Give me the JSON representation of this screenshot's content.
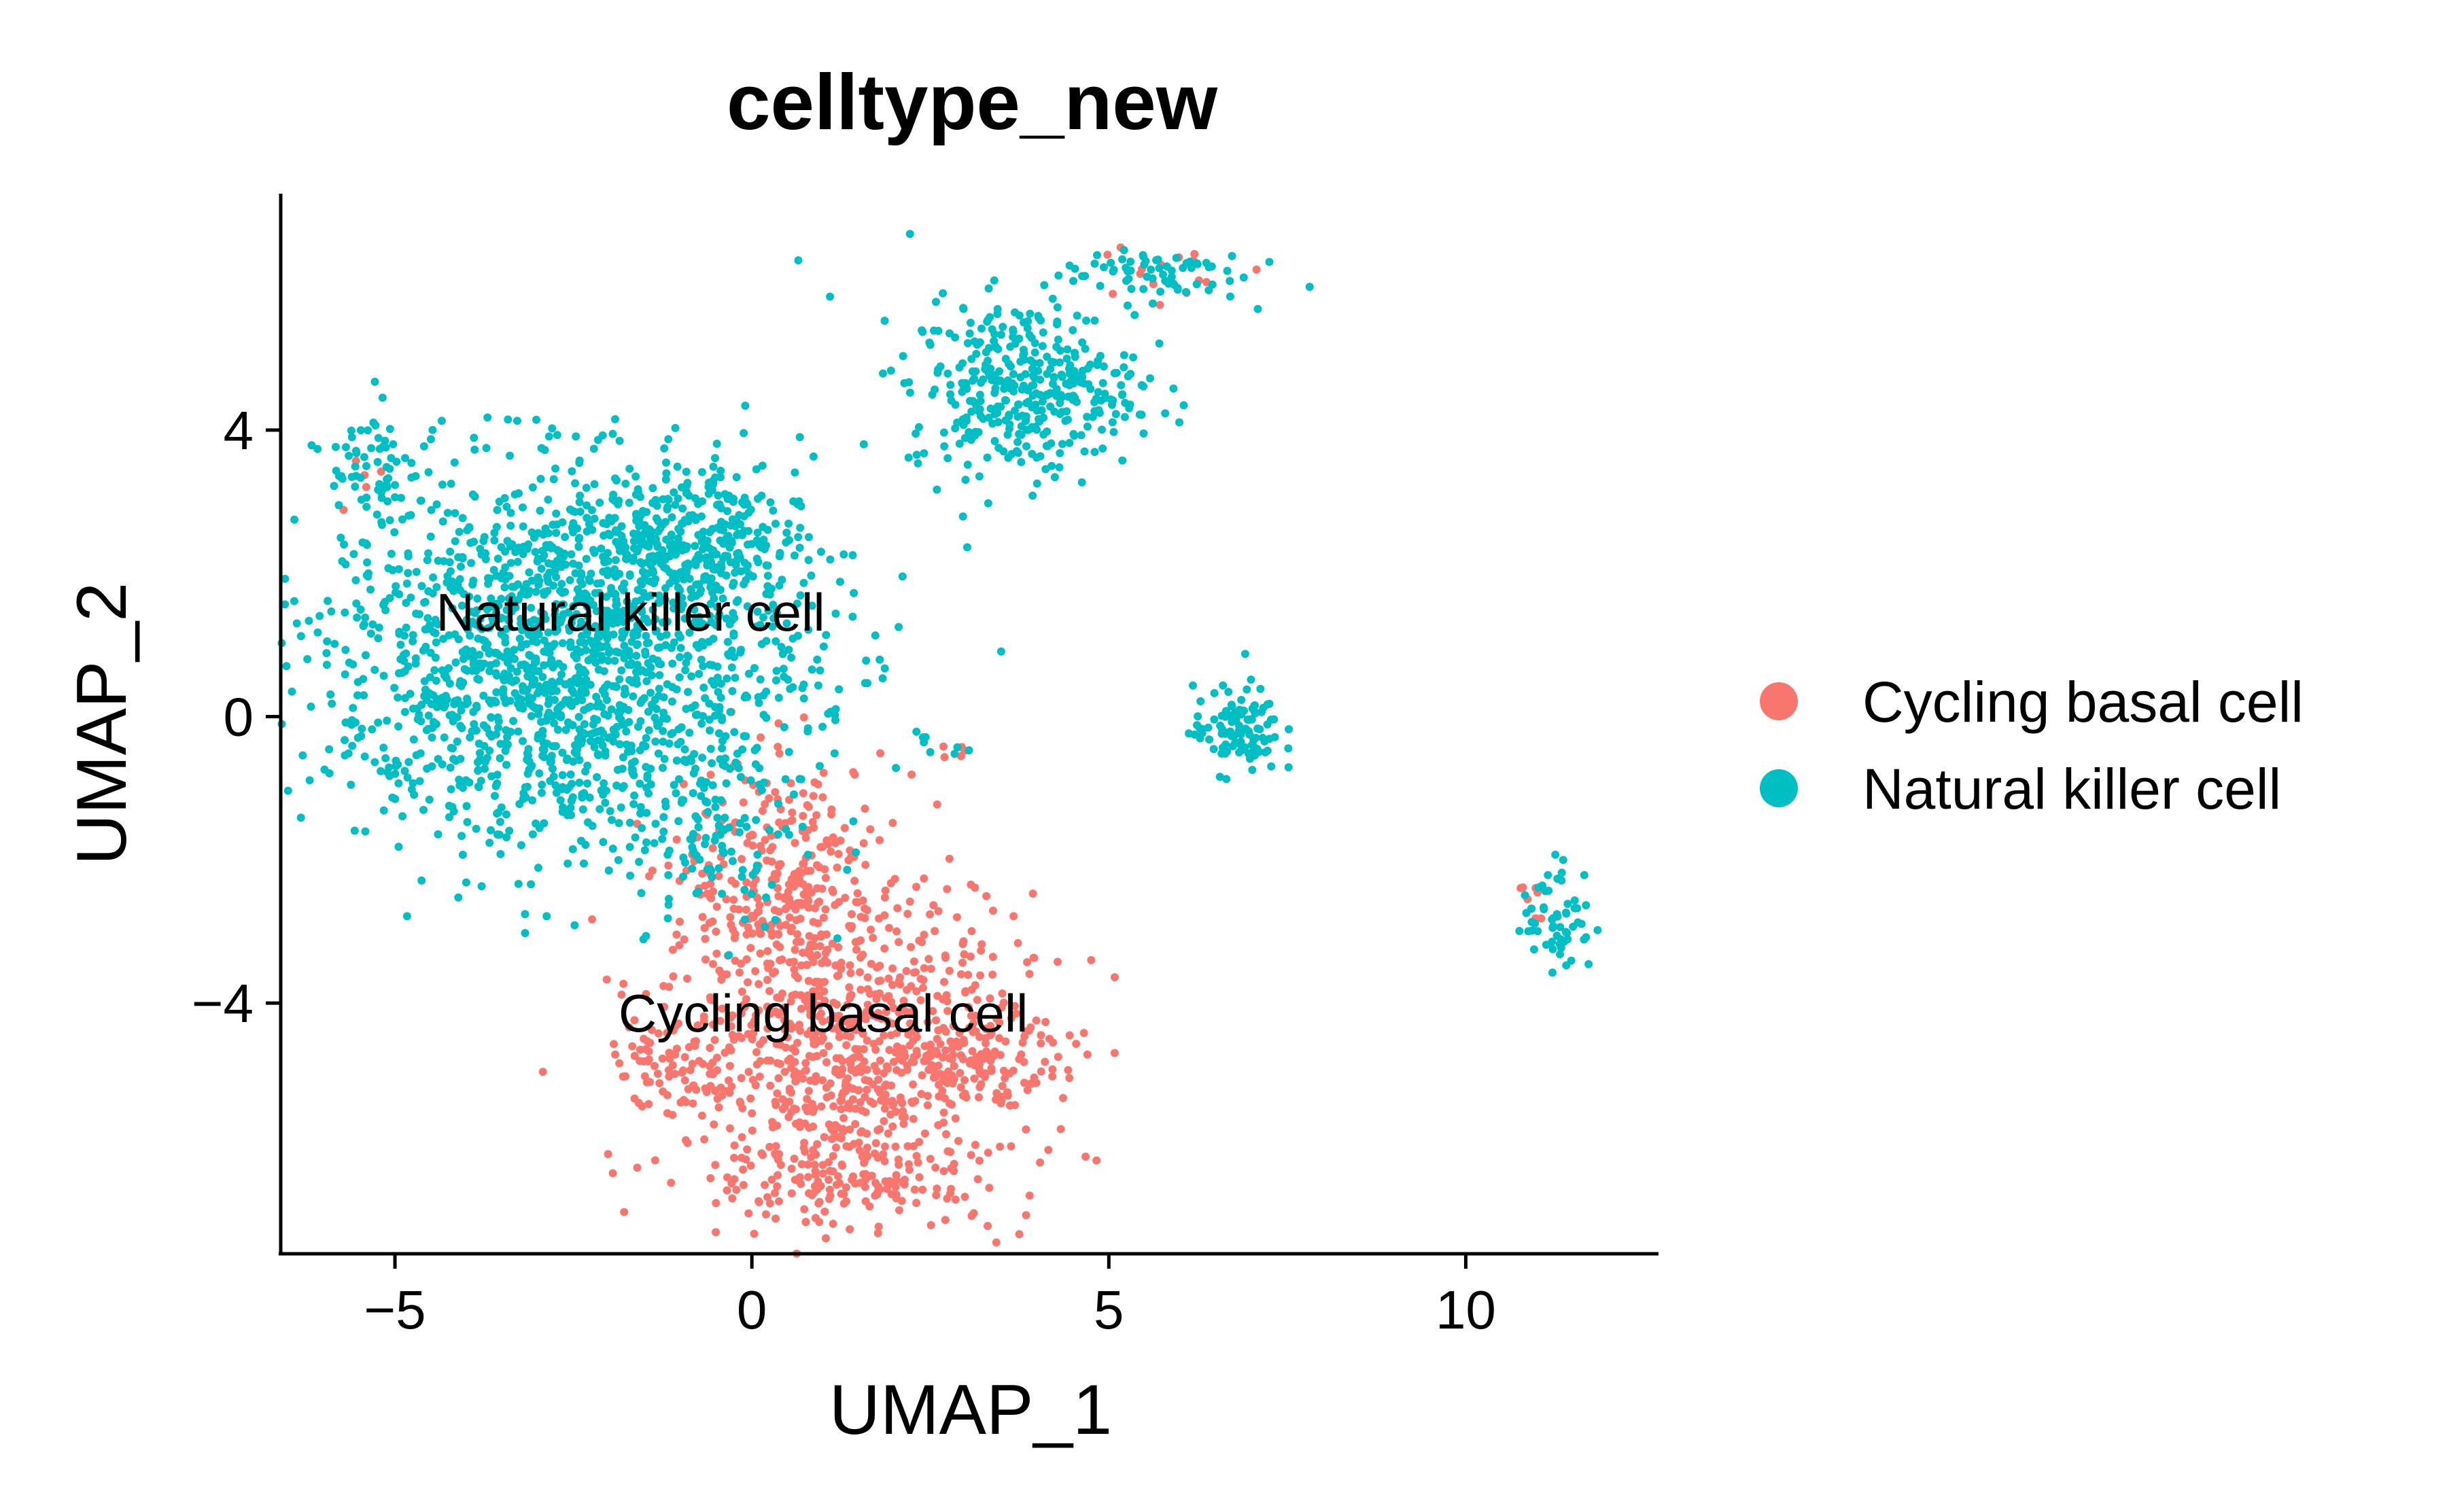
{
  "chart_data": {
    "type": "scatter",
    "title": "celltype_new",
    "xlabel": "UMAP_1",
    "ylabel": "UMAP_2",
    "xlim": [
      -6.6,
      12.7
    ],
    "ylim": [
      -7.5,
      7.3
    ],
    "xticks": [
      -5,
      0,
      5,
      10
    ],
    "yticks": [
      -4,
      0,
      4
    ],
    "xtick_labels": [
      "−5",
      "0",
      "5",
      "10"
    ],
    "ytick_labels": [
      "−4",
      "0",
      "4"
    ],
    "grid": false,
    "legend_position": "right",
    "series": [
      {
        "name": "Cycling basal cell",
        "color": "#F8766D",
        "clusters": [
          {
            "cx": 1.3,
            "cy": -4.8,
            "sx": 1.3,
            "sy": 1.2,
            "n": 900
          },
          {
            "cx": 0.5,
            "cy": -2.2,
            "sx": 0.7,
            "sy": 0.8,
            "n": 250
          },
          {
            "cx": -1.2,
            "cy": -4.8,
            "sx": 0.4,
            "sy": 0.3,
            "n": 60
          },
          {
            "cx": 3.3,
            "cy": -4.8,
            "sx": 0.5,
            "sy": 0.3,
            "n": 90
          },
          {
            "cx": 1.5,
            "cy": -6.6,
            "sx": 0.7,
            "sy": 0.2,
            "n": 60
          },
          {
            "cx": 5.8,
            "cy": 6.2,
            "sx": 0.6,
            "sy": 0.2,
            "n": 15
          },
          {
            "cx": -5.4,
            "cy": 3.4,
            "sx": 0.15,
            "sy": 0.3,
            "n": 5
          },
          {
            "cx": 2.8,
            "cy": -0.5,
            "sx": 0.15,
            "sy": 0.1,
            "n": 5
          },
          {
            "cx": 10.9,
            "cy": -2.6,
            "sx": 0.15,
            "sy": 0.3,
            "n": 8
          }
        ]
      },
      {
        "name": "Natural killer cell",
        "color": "#00BFC4",
        "clusters": [
          {
            "cx": -2.6,
            "cy": 0.8,
            "sx": 1.7,
            "sy": 1.3,
            "n": 1700
          },
          {
            "cx": -1.0,
            "cy": 2.4,
            "sx": 0.8,
            "sy": 0.5,
            "n": 300
          },
          {
            "cx": -5.3,
            "cy": 3.5,
            "sx": 0.3,
            "sy": 0.45,
            "n": 60
          },
          {
            "cx": -0.5,
            "cy": -1.8,
            "sx": 0.6,
            "sy": 0.6,
            "n": 80
          },
          {
            "cx": 3.8,
            "cy": 4.6,
            "sx": 0.8,
            "sy": 0.6,
            "n": 380
          },
          {
            "cx": 5.5,
            "cy": 6.2,
            "sx": 0.7,
            "sy": 0.2,
            "n": 70
          },
          {
            "cx": 6.8,
            "cy": -0.2,
            "sx": 0.3,
            "sy": 0.3,
            "n": 110
          },
          {
            "cx": 2.7,
            "cy": -0.4,
            "sx": 0.2,
            "sy": 0.1,
            "n": 8
          },
          {
            "cx": 11.3,
            "cy": -2.8,
            "sx": 0.25,
            "sy": 0.4,
            "n": 60
          }
        ]
      }
    ],
    "annotations": [
      {
        "text": "Natural killer cell",
        "x": -1.7,
        "y": 1.2
      },
      {
        "text": "Cycling basal cell",
        "x": 1.0,
        "y": -4.4
      }
    ]
  }
}
